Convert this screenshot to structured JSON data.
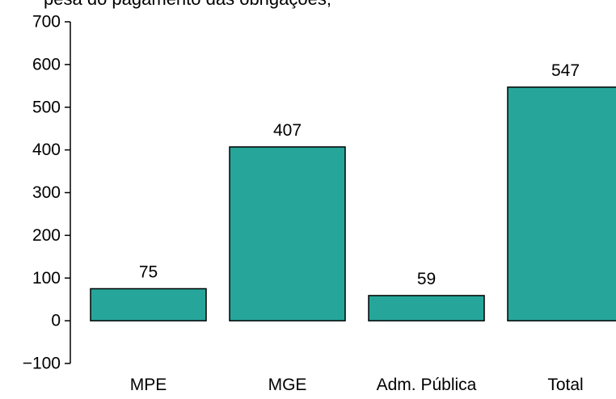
{
  "title": "pesa do pagamento das obrigações;",
  "chart_data": {
    "type": "bar",
    "categories": [
      "MPE",
      "MGE",
      "Adm. Pública",
      "Total"
    ],
    "values": [
      75,
      407,
      59,
      547
    ],
    "data_labels": [
      "75",
      "407",
      "59",
      "547"
    ],
    "ylim": [
      -100,
      700
    ],
    "yticks": [
      -100,
      0,
      100,
      200,
      300,
      400,
      500,
      600,
      700
    ],
    "ytick_labels": [
      "−100",
      "0",
      "100",
      "200",
      "300",
      "400",
      "500",
      "600",
      "700"
    ],
    "bar_color": "#26A69A",
    "grid": false,
    "legend": "none",
    "xlabel": "",
    "ylabel": ""
  }
}
